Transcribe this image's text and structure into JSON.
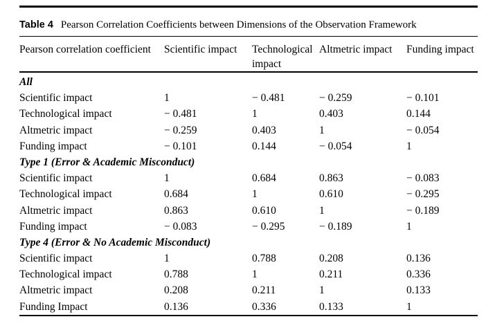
{
  "page": {
    "background": "#ffffff",
    "text_color": "#000000"
  },
  "table": {
    "label": "Table 4",
    "caption": "Pearson Correlation Coefficients between Dimensions of the Observation Framework",
    "columns": [
      "Pearson correlation coefficient",
      "Scientific impact",
      "Technological impact",
      "Altmetric impact",
      "Funding impact"
    ],
    "sections": [
      {
        "title": "All",
        "rows": [
          {
            "label": "Scientific impact",
            "values": [
              "1",
              "− 0.481",
              "− 0.259",
              "− 0.101"
            ]
          },
          {
            "label": "Technological impact",
            "values": [
              "− 0.481",
              "1",
              "0.403",
              "0.144"
            ]
          },
          {
            "label": "Altmetric impact",
            "values": [
              "− 0.259",
              "0.403",
              "1",
              "− 0.054"
            ]
          },
          {
            "label": "Funding impact",
            "values": [
              "− 0.101",
              "0.144",
              "− 0.054",
              "1"
            ]
          }
        ]
      },
      {
        "title": "Type 1 (Error & Academic Misconduct)",
        "rows": [
          {
            "label": "Scientific impact",
            "values": [
              "1",
              "0.684",
              "0.863",
              "− 0.083"
            ]
          },
          {
            "label": "Technological impact",
            "values": [
              "0.684",
              "1",
              "0.610",
              "− 0.295"
            ]
          },
          {
            "label": "Altmetric impact",
            "values": [
              "0.863",
              "0.610",
              "1",
              "− 0.189"
            ]
          },
          {
            "label": "Funding impact",
            "values": [
              "− 0.083",
              "− 0.295",
              "− 0.189",
              "1"
            ]
          }
        ]
      },
      {
        "title": "Type 4 (Error & No Academic Misconduct)",
        "rows": [
          {
            "label": "Scientific impact",
            "values": [
              "1",
              "0.788",
              "0.208",
              "0.136"
            ]
          },
          {
            "label": "Technological impact",
            "values": [
              "0.788",
              "1",
              "0.211",
              "0.336"
            ]
          },
          {
            "label": "Altmetric impact",
            "values": [
              "0.208",
              "0.211",
              "1",
              "0.133"
            ]
          },
          {
            "label": "Funding Impact",
            "values": [
              "0.136",
              "0.336",
              "0.133",
              "1"
            ]
          }
        ]
      }
    ]
  }
}
